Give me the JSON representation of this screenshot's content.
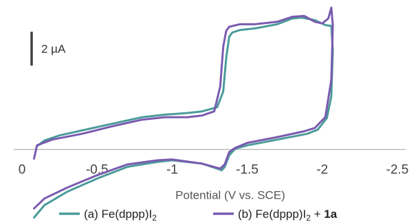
{
  "chart_data": {
    "type": "line",
    "title": "",
    "xlabel": "Potential (V vs. SCE)",
    "ylabel": "",
    "xlim": [
      0,
      -2.5
    ],
    "x_reversed": true,
    "ylim": [
      -4.2,
      8.6
    ],
    "y_units": "µA",
    "x_ticks": [
      "0",
      "-0.5",
      "-1",
      "-1.5",
      "-2",
      "-2.5"
    ],
    "x_tick_values": [
      0,
      -0.5,
      -1,
      -1.5,
      -2,
      -2.5
    ],
    "grid": false,
    "scale_bar": {
      "label": "2 µA",
      "value": 2
    },
    "legend_placement": "bottom",
    "legend": [
      {
        "prefix": "(a) Fe(dppp)I",
        "sub": "2",
        "suffix": "",
        "bold": ""
      },
      {
        "prefix": "(b) Fe(dppp)I",
        "sub": "2",
        "suffix": " + ",
        "bold": "1a"
      }
    ],
    "series": [
      {
        "name": "(a) Fe(dppp)I2",
        "color": "#4a9b9a",
        "x": [
          -0.1,
          -0.15,
          -0.25,
          -0.4,
          -0.6,
          -0.8,
          -0.95,
          -1.1,
          -1.2,
          -1.3,
          -1.34,
          -1.36,
          -1.38,
          -1.4,
          -1.45,
          -1.55,
          -1.7,
          -1.8,
          -1.86,
          -1.95,
          -2.02,
          -2.06,
          -2.07,
          -2.06,
          -2.03,
          -1.97,
          -1.9,
          -1.7,
          -1.5,
          -1.42,
          -1.38,
          -1.35,
          -1.33,
          -1.3,
          -1.2,
          -1.0,
          -0.9,
          -0.7,
          -0.5,
          -0.3,
          -0.15,
          -0.08
        ],
        "y": [
          0.2,
          0.55,
          0.85,
          1.15,
          1.55,
          1.95,
          2.1,
          2.2,
          2.3,
          2.55,
          3.5,
          5.5,
          6.8,
          7.05,
          7.2,
          7.3,
          7.55,
          7.9,
          7.95,
          7.8,
          7.5,
          7.45,
          6.0,
          3.2,
          1.9,
          1.2,
          0.95,
          0.6,
          0.25,
          0.05,
          -0.35,
          -1.05,
          -1.25,
          -1.15,
          -0.85,
          -0.65,
          -0.75,
          -1.05,
          -1.75,
          -2.55,
          -3.35,
          -4.1
        ]
      },
      {
        "name": "(b) Fe(dppp)I2 + 1a",
        "color": "#7a5ab0",
        "x": [
          -0.08,
          -0.1,
          -0.2,
          -0.4,
          -0.6,
          -0.8,
          -0.95,
          -1.1,
          -1.2,
          -1.28,
          -1.32,
          -1.34,
          -1.36,
          -1.38,
          -1.45,
          -1.55,
          -1.7,
          -1.8,
          -1.88,
          -1.95,
          -2.0,
          -2.04,
          -2.06,
          -2.07,
          -2.06,
          -2.02,
          -1.95,
          -1.88,
          -1.7,
          -1.5,
          -1.42,
          -1.38,
          -1.35,
          -1.32,
          -1.3,
          -1.2,
          -1.0,
          -0.9,
          -0.7,
          -0.5,
          -0.3,
          -0.15,
          -0.08
        ],
        "y": [
          -0.55,
          0.25,
          0.6,
          0.95,
          1.4,
          1.8,
          1.95,
          1.95,
          2.05,
          2.3,
          3.8,
          6.2,
          7.15,
          7.4,
          7.55,
          7.55,
          7.7,
          8.0,
          8.05,
          7.7,
          7.6,
          7.9,
          8.55,
          7.5,
          4.2,
          1.95,
          1.3,
          1.1,
          0.75,
          0.4,
          0.1,
          -0.15,
          -0.9,
          -1.15,
          -1.1,
          -0.85,
          -0.6,
          -0.65,
          -0.9,
          -1.55,
          -2.3,
          -2.95,
          -3.55
        ]
      }
    ]
  }
}
